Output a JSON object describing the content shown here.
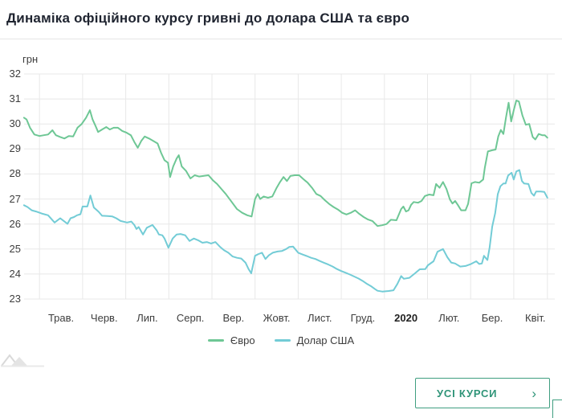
{
  "page": {
    "title": "Динаміка офіційного курсу гривні до долара США та євро"
  },
  "chart_data": {
    "type": "line",
    "title": "Динаміка офіційного курсу гривні до долара США та євро",
    "y_unit": "грн",
    "ylim": [
      23,
      32
    ],
    "y_ticks": [
      32,
      31,
      30,
      29,
      28,
      27,
      26,
      25,
      24,
      23
    ],
    "x_tick_labels": [
      "Трав.",
      "Черв.",
      "Лип.",
      "Серп.",
      "Вер.",
      "Жовт.",
      "Лист.",
      "Груд.",
      "2020",
      "Лют.",
      "Бер.",
      "Квіт."
    ],
    "x_bold_label": "2020",
    "x_unit": "months since 1 May 2019",
    "grid": true,
    "legend_position": "bottom",
    "series": [
      {
        "name": "Євро",
        "color": "#6ec795",
        "points": [
          [
            -0.36,
            30.25
          ],
          [
            -0.3,
            30.18
          ],
          [
            -0.22,
            29.85
          ],
          [
            -0.12,
            29.58
          ],
          [
            0.0,
            29.52
          ],
          [
            0.1,
            29.55
          ],
          [
            0.2,
            29.58
          ],
          [
            0.3,
            29.75
          ],
          [
            0.38,
            29.55
          ],
          [
            0.48,
            29.48
          ],
          [
            0.58,
            29.42
          ],
          [
            0.68,
            29.52
          ],
          [
            0.78,
            29.5
          ],
          [
            0.88,
            29.85
          ],
          [
            0.98,
            30.0
          ],
          [
            1.08,
            30.25
          ],
          [
            1.17,
            30.55
          ],
          [
            1.23,
            30.18
          ],
          [
            1.3,
            29.92
          ],
          [
            1.36,
            29.68
          ],
          [
            1.45,
            29.78
          ],
          [
            1.55,
            29.88
          ],
          [
            1.63,
            29.78
          ],
          [
            1.72,
            29.85
          ],
          [
            1.82,
            29.85
          ],
          [
            1.92,
            29.72
          ],
          [
            2.02,
            29.65
          ],
          [
            2.12,
            29.55
          ],
          [
            2.2,
            29.28
          ],
          [
            2.28,
            29.05
          ],
          [
            2.36,
            29.32
          ],
          [
            2.44,
            29.5
          ],
          [
            2.54,
            29.42
          ],
          [
            2.64,
            29.32
          ],
          [
            2.74,
            29.22
          ],
          [
            2.82,
            28.85
          ],
          [
            2.9,
            28.55
          ],
          [
            2.98,
            28.45
          ],
          [
            3.03,
            27.88
          ],
          [
            3.1,
            28.3
          ],
          [
            3.18,
            28.62
          ],
          [
            3.23,
            28.75
          ],
          [
            3.3,
            28.3
          ],
          [
            3.4,
            28.12
          ],
          [
            3.5,
            27.82
          ],
          [
            3.6,
            27.95
          ],
          [
            3.7,
            27.9
          ],
          [
            3.8,
            27.92
          ],
          [
            3.92,
            27.95
          ],
          [
            4.02,
            27.75
          ],
          [
            4.12,
            27.6
          ],
          [
            4.22,
            27.4
          ],
          [
            4.32,
            27.2
          ],
          [
            4.45,
            26.9
          ],
          [
            4.58,
            26.6
          ],
          [
            4.7,
            26.45
          ],
          [
            4.82,
            26.35
          ],
          [
            4.92,
            26.3
          ],
          [
            5.0,
            27.0
          ],
          [
            5.06,
            27.2
          ],
          [
            5.12,
            27.0
          ],
          [
            5.2,
            27.1
          ],
          [
            5.3,
            27.05
          ],
          [
            5.4,
            27.1
          ],
          [
            5.5,
            27.45
          ],
          [
            5.58,
            27.68
          ],
          [
            5.66,
            27.88
          ],
          [
            5.74,
            27.72
          ],
          [
            5.82,
            27.92
          ],
          [
            5.92,
            27.95
          ],
          [
            6.02,
            27.95
          ],
          [
            6.12,
            27.8
          ],
          [
            6.22,
            27.65
          ],
          [
            6.32,
            27.45
          ],
          [
            6.42,
            27.2
          ],
          [
            6.52,
            27.12
          ],
          [
            6.62,
            26.95
          ],
          [
            6.72,
            26.8
          ],
          [
            6.82,
            26.68
          ],
          [
            6.92,
            26.58
          ],
          [
            7.02,
            26.45
          ],
          [
            7.12,
            26.38
          ],
          [
            7.22,
            26.45
          ],
          [
            7.32,
            26.55
          ],
          [
            7.42,
            26.4
          ],
          [
            7.52,
            26.28
          ],
          [
            7.62,
            26.18
          ],
          [
            7.72,
            26.12
          ],
          [
            7.84,
            25.92
          ],
          [
            7.95,
            25.95
          ],
          [
            8.05,
            26.0
          ],
          [
            8.15,
            26.17
          ],
          [
            8.28,
            26.15
          ],
          [
            8.39,
            26.6
          ],
          [
            8.44,
            26.7
          ],
          [
            8.5,
            26.5
          ],
          [
            8.56,
            26.55
          ],
          [
            8.62,
            26.77
          ],
          [
            8.68,
            26.88
          ],
          [
            8.78,
            26.85
          ],
          [
            8.86,
            26.92
          ],
          [
            8.94,
            27.12
          ],
          [
            9.04,
            27.18
          ],
          [
            9.14,
            27.15
          ],
          [
            9.2,
            27.6
          ],
          [
            9.28,
            27.45
          ],
          [
            9.36,
            27.68
          ],
          [
            9.44,
            27.4
          ],
          [
            9.52,
            26.98
          ],
          [
            9.58,
            26.82
          ],
          [
            9.64,
            26.92
          ],
          [
            9.7,
            26.77
          ],
          [
            9.78,
            26.55
          ],
          [
            9.88,
            26.55
          ],
          [
            9.94,
            26.8
          ],
          [
            10.02,
            27.63
          ],
          [
            10.1,
            27.68
          ],
          [
            10.2,
            27.65
          ],
          [
            10.29,
            27.78
          ],
          [
            10.33,
            28.26
          ],
          [
            10.4,
            28.9
          ],
          [
            10.5,
            28.95
          ],
          [
            10.58,
            28.98
          ],
          [
            10.64,
            29.5
          ],
          [
            10.7,
            29.76
          ],
          [
            10.76,
            29.6
          ],
          [
            10.82,
            30.25
          ],
          [
            10.88,
            30.85
          ],
          [
            10.94,
            30.1
          ],
          [
            11.0,
            30.55
          ],
          [
            11.06,
            30.94
          ],
          [
            11.12,
            30.9
          ],
          [
            11.2,
            30.35
          ],
          [
            11.28,
            29.97
          ],
          [
            11.36,
            30.0
          ],
          [
            11.44,
            29.48
          ],
          [
            11.5,
            29.38
          ],
          [
            11.58,
            29.6
          ],
          [
            11.66,
            29.55
          ],
          [
            11.72,
            29.55
          ],
          [
            11.78,
            29.45
          ]
        ]
      },
      {
        "name": "Долар США",
        "color": "#73ccd6",
        "points": [
          [
            -0.36,
            26.75
          ],
          [
            -0.28,
            26.68
          ],
          [
            -0.18,
            26.55
          ],
          [
            -0.08,
            26.5
          ],
          [
            0.05,
            26.42
          ],
          [
            0.2,
            26.35
          ],
          [
            0.35,
            26.06
          ],
          [
            0.48,
            26.23
          ],
          [
            0.58,
            26.1
          ],
          [
            0.65,
            26.01
          ],
          [
            0.72,
            26.23
          ],
          [
            0.8,
            26.28
          ],
          [
            0.87,
            26.35
          ],
          [
            0.95,
            26.39
          ],
          [
            1.0,
            26.7
          ],
          [
            1.11,
            26.7
          ],
          [
            1.18,
            27.14
          ],
          [
            1.26,
            26.66
          ],
          [
            1.37,
            26.49
          ],
          [
            1.45,
            26.33
          ],
          [
            1.58,
            26.32
          ],
          [
            1.69,
            26.3
          ],
          [
            1.78,
            26.23
          ],
          [
            1.88,
            26.12
          ],
          [
            2.03,
            26.06
          ],
          [
            2.13,
            26.1
          ],
          [
            2.2,
            25.96
          ],
          [
            2.25,
            25.8
          ],
          [
            2.3,
            25.88
          ],
          [
            2.4,
            25.58
          ],
          [
            2.49,
            25.85
          ],
          [
            2.62,
            25.96
          ],
          [
            2.72,
            25.74
          ],
          [
            2.77,
            25.58
          ],
          [
            2.85,
            25.55
          ],
          [
            2.9,
            25.42
          ],
          [
            2.99,
            25.05
          ],
          [
            3.09,
            25.42
          ],
          [
            3.18,
            25.58
          ],
          [
            3.27,
            25.6
          ],
          [
            3.38,
            25.55
          ],
          [
            3.48,
            25.32
          ],
          [
            3.58,
            25.42
          ],
          [
            3.68,
            25.35
          ],
          [
            3.78,
            25.25
          ],
          [
            3.88,
            25.28
          ],
          [
            3.98,
            25.22
          ],
          [
            4.08,
            25.28
          ],
          [
            4.18,
            25.1
          ],
          [
            4.28,
            24.95
          ],
          [
            4.38,
            24.85
          ],
          [
            4.48,
            24.7
          ],
          [
            4.58,
            24.65
          ],
          [
            4.68,
            24.62
          ],
          [
            4.78,
            24.45
          ],
          [
            4.85,
            24.2
          ],
          [
            4.91,
            24.03
          ],
          [
            5.0,
            24.73
          ],
          [
            5.08,
            24.8
          ],
          [
            5.16,
            24.85
          ],
          [
            5.24,
            24.6
          ],
          [
            5.32,
            24.75
          ],
          [
            5.41,
            24.85
          ],
          [
            5.52,
            24.9
          ],
          [
            5.62,
            24.92
          ],
          [
            5.72,
            25.0
          ],
          [
            5.79,
            25.08
          ],
          [
            5.88,
            25.1
          ],
          [
            6.0,
            24.85
          ],
          [
            6.1,
            24.78
          ],
          [
            6.2,
            24.72
          ],
          [
            6.3,
            24.65
          ],
          [
            6.4,
            24.6
          ],
          [
            6.5,
            24.52
          ],
          [
            6.6,
            24.45
          ],
          [
            6.7,
            24.38
          ],
          [
            6.8,
            24.3
          ],
          [
            6.9,
            24.2
          ],
          [
            7.0,
            24.12
          ],
          [
            7.1,
            24.05
          ],
          [
            7.2,
            23.98
          ],
          [
            7.3,
            23.9
          ],
          [
            7.4,
            23.82
          ],
          [
            7.5,
            23.72
          ],
          [
            7.6,
            23.6
          ],
          [
            7.7,
            23.5
          ],
          [
            7.78,
            23.4
          ],
          [
            7.84,
            23.33
          ],
          [
            7.95,
            23.3
          ],
          [
            8.1,
            23.32
          ],
          [
            8.21,
            23.35
          ],
          [
            8.3,
            23.6
          ],
          [
            8.39,
            23.92
          ],
          [
            8.45,
            23.81
          ],
          [
            8.58,
            23.85
          ],
          [
            8.71,
            24.03
          ],
          [
            8.82,
            24.19
          ],
          [
            8.95,
            24.2
          ],
          [
            9.01,
            24.35
          ],
          [
            9.14,
            24.51
          ],
          [
            9.23,
            24.89
          ],
          [
            9.29,
            24.94
          ],
          [
            9.36,
            25.0
          ],
          [
            9.46,
            24.67
          ],
          [
            9.55,
            24.46
          ],
          [
            9.64,
            24.42
          ],
          [
            9.76,
            24.3
          ],
          [
            9.88,
            24.32
          ],
          [
            10.01,
            24.4
          ],
          [
            10.13,
            24.51
          ],
          [
            10.2,
            24.4
          ],
          [
            10.26,
            24.42
          ],
          [
            10.31,
            24.73
          ],
          [
            10.39,
            24.56
          ],
          [
            10.44,
            25.05
          ],
          [
            10.5,
            25.9
          ],
          [
            10.57,
            26.44
          ],
          [
            10.63,
            27.19
          ],
          [
            10.69,
            27.51
          ],
          [
            10.76,
            27.62
          ],
          [
            10.81,
            27.62
          ],
          [
            10.87,
            27.94
          ],
          [
            10.95,
            28.05
          ],
          [
            11.0,
            27.78
          ],
          [
            11.06,
            28.1
          ],
          [
            11.13,
            28.16
          ],
          [
            11.19,
            27.72
          ],
          [
            11.24,
            27.62
          ],
          [
            11.34,
            27.6
          ],
          [
            11.41,
            27.24
          ],
          [
            11.47,
            27.13
          ],
          [
            11.52,
            27.3
          ],
          [
            11.63,
            27.3
          ],
          [
            11.71,
            27.28
          ],
          [
            11.78,
            27.05
          ]
        ]
      }
    ]
  },
  "footer": {
    "all_rates_label": "УСІ КУРСИ",
    "chevron": "›",
    "accent_color": "#2f9478"
  }
}
